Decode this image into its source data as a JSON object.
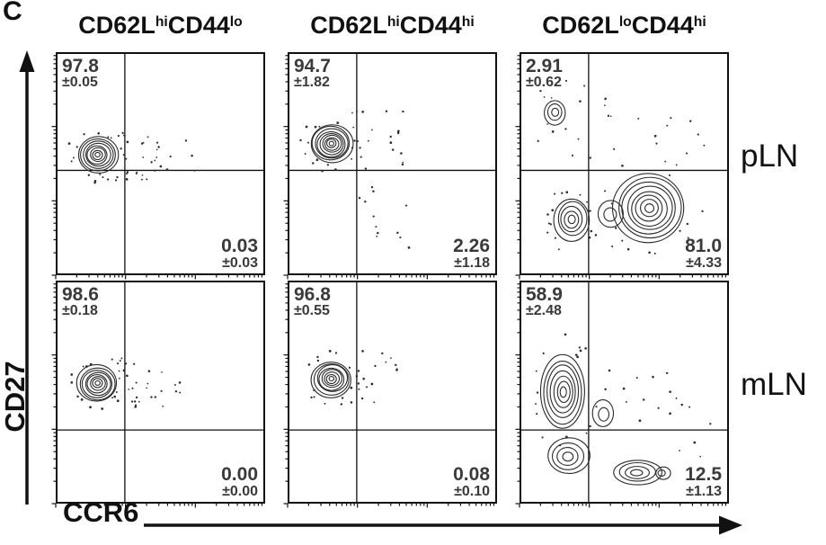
{
  "panel_label": "C",
  "axis": {
    "x_label": "CCR6",
    "y_label": "CD27"
  },
  "row_labels": [
    "pLN",
    "mLN"
  ],
  "column_titles": [
    {
      "name": "CD62LhiCD44lo",
      "segs": [
        "CD62L",
        "hi",
        "CD44",
        "lo"
      ]
    },
    {
      "name": "CD62LhiCD44hi",
      "segs": [
        "CD62L",
        "hi",
        "CD44",
        "hi"
      ]
    },
    {
      "name": "CD62LloCD44hi",
      "segs": [
        "CD62L",
        "lo",
        "CD44",
        "hi"
      ]
    }
  ],
  "colors": {
    "ink": "#111111",
    "contour": "#2b2b2b",
    "stat_text": "#3a3a3a"
  },
  "chart_data": {
    "type": "scatter",
    "subtype": "flow-cytometry-contour",
    "title": "",
    "x_axis": {
      "label": "CCR6",
      "scale": "log"
    },
    "y_axis": {
      "label": "CD27",
      "scale": "log"
    },
    "grid": false,
    "rows": [
      "pLN",
      "mLN"
    ],
    "columns": [
      "CD62LhiCD44lo",
      "CD62LhiCD44hi",
      "CD62LloCD44hi"
    ],
    "plots": [
      {
        "row": "pLN",
        "column": "CD62LhiCD44lo",
        "gate_x": 0.33,
        "gate_y": 0.53,
        "stats": {
          "upper_left": {
            "mean": 97.8,
            "sem": 0.05,
            "value_text": "97.8",
            "sem_text": "±0.05"
          },
          "lower_right": {
            "mean": 0.03,
            "sem": 0.03,
            "value_text": "0.03",
            "sem_text": "±0.03"
          }
        },
        "clusters": [
          {
            "cx": 0.2,
            "cy": 0.46,
            "rx": 0.095,
            "ry": 0.082,
            "rings": 8
          }
        ],
        "scatter": [
          {
            "n": 24,
            "x0": 0.28,
            "x1": 0.5,
            "y0": 0.34,
            "y1": 0.58
          },
          {
            "n": 8,
            "x0": 0.48,
            "x1": 0.68,
            "y0": 0.36,
            "y1": 0.54
          }
        ]
      },
      {
        "row": "pLN",
        "column": "CD62LhiCD44hi",
        "gate_x": 0.33,
        "gate_y": 0.53,
        "stats": {
          "upper_left": {
            "mean": 94.7,
            "sem": 1.82,
            "value_text": "94.7",
            "sem_text": "±1.82"
          },
          "lower_right": {
            "mean": 2.26,
            "sem": 1.18,
            "value_text": "2.26",
            "sem_text": "±1.18"
          }
        },
        "clusters": [
          {
            "cx": 0.21,
            "cy": 0.41,
            "rx": 0.1,
            "ry": 0.085,
            "rings": 9
          }
        ],
        "scatter": [
          {
            "n": 20,
            "x0": 0.3,
            "x1": 0.6,
            "y0": 0.26,
            "y1": 0.55
          },
          {
            "n": 12,
            "x0": 0.32,
            "x1": 0.72,
            "y0": 0.6,
            "y1": 0.9
          }
        ]
      },
      {
        "row": "pLN",
        "column": "CD62LloCD44hi",
        "gate_x": 0.33,
        "gate_y": 0.53,
        "stats": {
          "upper_left": {
            "mean": 2.91,
            "sem": 0.62,
            "value_text": "2.91",
            "sem_text": "±0.62"
          },
          "lower_right": {
            "mean": 81.0,
            "sem": 4.33,
            "value_text": "81.0",
            "sem_text": "±4.33"
          }
        },
        "clusters": [
          {
            "cx": 0.62,
            "cy": 0.7,
            "rx": 0.17,
            "ry": 0.155,
            "rings": 8
          },
          {
            "cx": 0.25,
            "cy": 0.75,
            "rx": 0.085,
            "ry": 0.095,
            "rings": 5
          },
          {
            "cx": 0.43,
            "cy": 0.73,
            "rx": 0.06,
            "ry": 0.06,
            "rings": 2
          },
          {
            "cx": 0.17,
            "cy": 0.27,
            "rx": 0.05,
            "ry": 0.055,
            "rings": 3
          }
        ],
        "scatter": [
          {
            "n": 18,
            "x0": 0.08,
            "x1": 0.45,
            "y0": 0.1,
            "y1": 0.48
          },
          {
            "n": 10,
            "x0": 0.45,
            "x1": 0.9,
            "y0": 0.28,
            "y1": 0.5
          }
        ]
      },
      {
        "row": "mLN",
        "column": "CD62LhiCD44lo",
        "gate_x": 0.33,
        "gate_y": 0.67,
        "stats": {
          "upper_left": {
            "mean": 98.6,
            "sem": 0.18,
            "value_text": "98.6",
            "sem_text": "±0.18"
          },
          "lower_right": {
            "mean": 0.0,
            "sem": 0.0,
            "value_text": "0.00",
            "sem_text": "±0.00"
          }
        },
        "clusters": [
          {
            "cx": 0.2,
            "cy": 0.46,
            "rx": 0.095,
            "ry": 0.082,
            "rings": 8
          }
        ],
        "scatter": [
          {
            "n": 22,
            "x0": 0.28,
            "x1": 0.52,
            "y0": 0.34,
            "y1": 0.58
          },
          {
            "n": 6,
            "x0": 0.5,
            "x1": 0.66,
            "y0": 0.38,
            "y1": 0.52
          }
        ]
      },
      {
        "row": "mLN",
        "column": "CD62LhiCD44hi",
        "gate_x": 0.33,
        "gate_y": 0.67,
        "stats": {
          "upper_left": {
            "mean": 96.8,
            "sem": 0.55,
            "value_text": "96.8",
            "sem_text": "±0.55"
          },
          "lower_right": {
            "mean": 0.08,
            "sem": 0.1,
            "value_text": "0.08",
            "sem_text": "±0.10"
          }
        },
        "clusters": [
          {
            "cx": 0.21,
            "cy": 0.44,
            "rx": 0.095,
            "ry": 0.08,
            "rings": 8
          }
        ],
        "scatter": [
          {
            "n": 16,
            "x0": 0.3,
            "x1": 0.56,
            "y0": 0.3,
            "y1": 0.58
          }
        ]
      },
      {
        "row": "mLN",
        "column": "CD62LloCD44hi",
        "gate_x": 0.33,
        "gate_y": 0.67,
        "stats": {
          "upper_left": {
            "mean": 58.9,
            "sem": 2.48,
            "value_text": "58.9",
            "sem_text": "±2.48"
          },
          "lower_right": {
            "mean": 12.5,
            "sem": 1.13,
            "value_text": "12.5",
            "sem_text": "±1.13"
          }
        },
        "clusters": [
          {
            "cx": 0.21,
            "cy": 0.5,
            "rx": 0.105,
            "ry": 0.165,
            "rings": 7
          },
          {
            "cx": 0.23,
            "cy": 0.79,
            "rx": 0.1,
            "ry": 0.08,
            "rings": 4
          },
          {
            "cx": 0.4,
            "cy": 0.6,
            "rx": 0.05,
            "ry": 0.06,
            "rings": 2
          },
          {
            "cx": 0.56,
            "cy": 0.86,
            "rx": 0.115,
            "ry": 0.055,
            "rings": 4
          },
          {
            "cx": 0.68,
            "cy": 0.86,
            "rx": 0.035,
            "ry": 0.028,
            "rings": 2
          }
        ],
        "scatter": [
          {
            "n": 14,
            "x0": 0.35,
            "x1": 0.8,
            "y0": 0.33,
            "y1": 0.7
          },
          {
            "n": 6,
            "x0": 0.75,
            "x1": 0.92,
            "y0": 0.55,
            "y1": 0.8
          }
        ]
      }
    ]
  }
}
